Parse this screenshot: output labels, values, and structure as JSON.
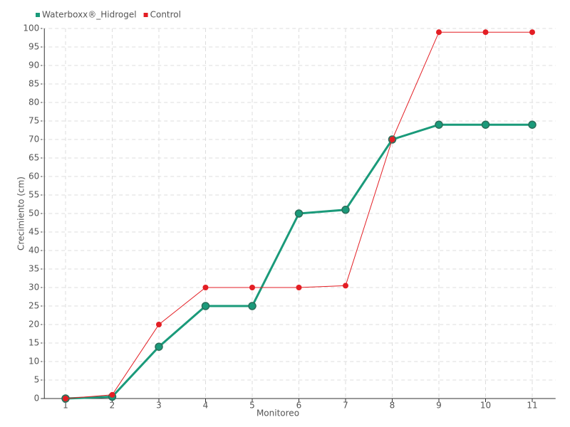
{
  "chart_data": {
    "type": "line",
    "x_label": "Monitoreo",
    "y_label": "Crecimiento (cm)",
    "categories": [
      "1",
      "2",
      "3",
      "4",
      "5",
      "6",
      "7",
      "8",
      "9",
      "10",
      "11"
    ],
    "series": [
      {
        "name": "Waterboxx®_Hidrogel",
        "color": "#1a9a7a",
        "values": [
          0,
          0.5,
          14,
          25,
          25,
          50,
          51,
          70,
          74,
          74,
          74
        ]
      },
      {
        "name": "Control",
        "color": "#e31e24",
        "values": [
          0,
          1,
          20,
          30,
          30,
          30,
          30.5,
          70,
          99,
          99,
          99
        ]
      }
    ],
    "ylim": [
      0,
      100
    ],
    "yticks": [
      0,
      5,
      10,
      15,
      20,
      25,
      30,
      35,
      40,
      45,
      50,
      55,
      60,
      65,
      70,
      75,
      80,
      85,
      90,
      95,
      100
    ],
    "grid": true
  }
}
